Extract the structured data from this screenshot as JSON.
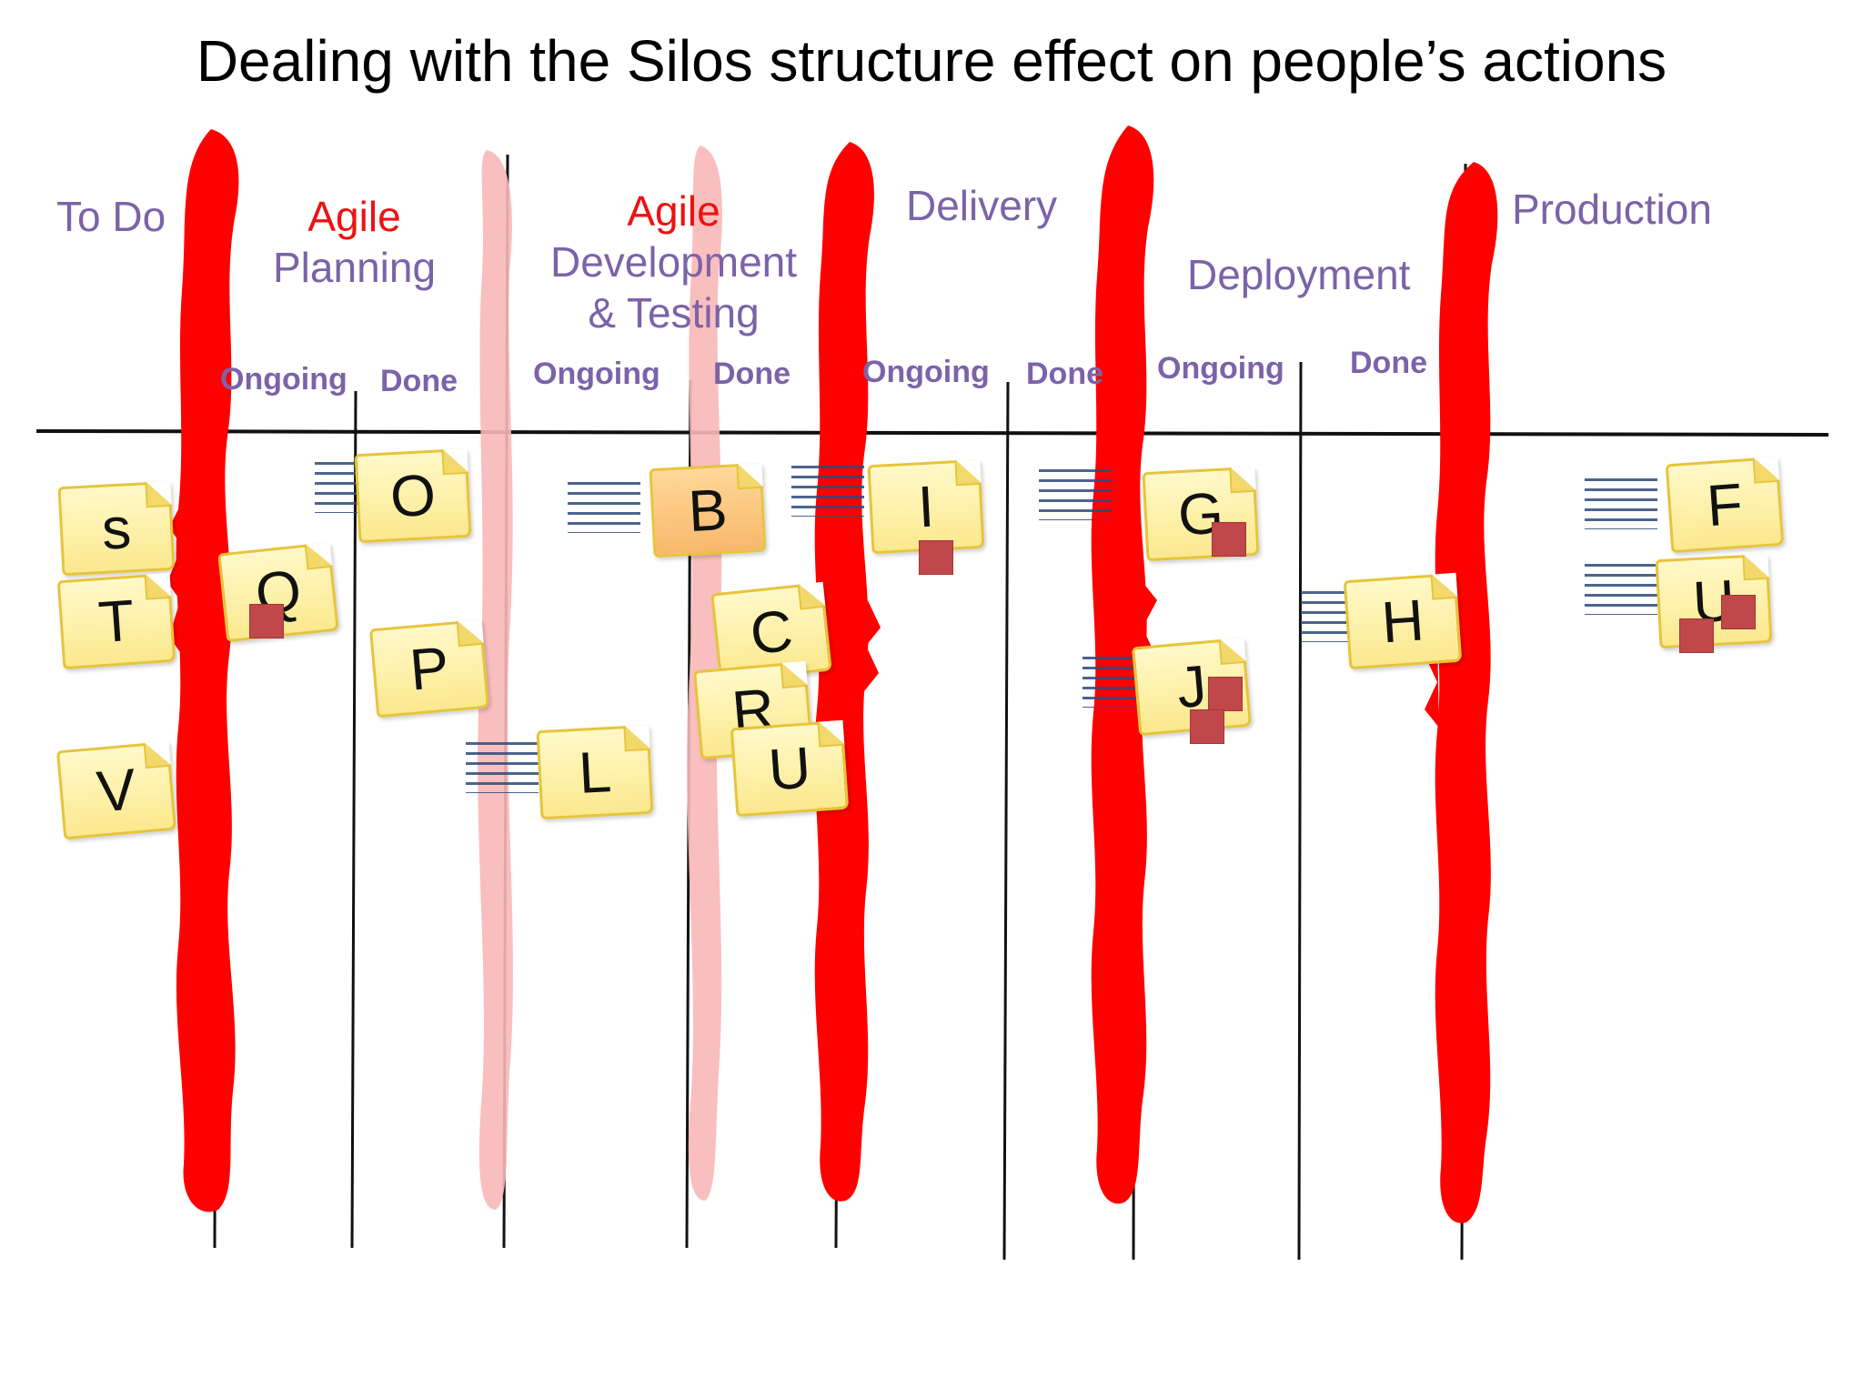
{
  "title": "Dealing with the Silos structure effect on people’s actions",
  "columns": {
    "todo": {
      "label": "To Do"
    },
    "planning": {
      "prefix": "Agile",
      "label": "Planning",
      "sub_ongoing": "Ongoing",
      "sub_done": "Done"
    },
    "development": {
      "prefix": "Agile",
      "label_line1": "Development",
      "label_line2": "& Testing",
      "sub_ongoing": "Ongoing",
      "sub_done": "Done"
    },
    "delivery": {
      "label": "Delivery",
      "sub_ongoing": "Ongoing",
      "sub_done": "Done"
    },
    "deployment": {
      "label": "Deployment",
      "sub_ongoing": "Ongoing",
      "sub_done": "Done"
    },
    "production": {
      "label": "Production"
    }
  },
  "cards": [
    {
      "id": "s",
      "label": "s",
      "column": "To Do",
      "blocked": false
    },
    {
      "id": "T",
      "label": "T",
      "column": "To Do",
      "blocked": false
    },
    {
      "id": "V",
      "label": "V",
      "column": "To Do",
      "blocked": false
    },
    {
      "id": "Q",
      "label": "Q",
      "column": "Planning Ongoing",
      "blocked": true
    },
    {
      "id": "O",
      "label": "O",
      "column": "Planning Done",
      "blocked": false
    },
    {
      "id": "P",
      "label": "P",
      "column": "Planning Done",
      "blocked": false
    },
    {
      "id": "L",
      "label": "L",
      "column": "Development Ongoing",
      "blocked": false
    },
    {
      "id": "B",
      "label": "B",
      "column": "Development Done",
      "blocked": false
    },
    {
      "id": "C",
      "label": "C",
      "column": "Development Done",
      "blocked": false
    },
    {
      "id": "R",
      "label": "R",
      "column": "Development Done",
      "blocked": false
    },
    {
      "id": "U1",
      "label": "U",
      "column": "Development Done",
      "blocked": false
    },
    {
      "id": "I",
      "label": "I",
      "column": "Delivery Ongoing",
      "blocked": true
    },
    {
      "id": "G",
      "label": "G",
      "column": "Deployment Ongoing",
      "blocked": true
    },
    {
      "id": "J",
      "label": "J",
      "column": "Deployment Ongoing",
      "blocked": true
    },
    {
      "id": "H",
      "label": "H",
      "column": "Deployment Done",
      "blocked": false
    },
    {
      "id": "F",
      "label": "F",
      "column": "Production",
      "blocked": false
    },
    {
      "id": "U2",
      "label": "U",
      "column": "Production",
      "blocked": true
    }
  ],
  "colors": {
    "silo_wall": "#ff0000",
    "silo_wall_faded": "#f8b8b8",
    "heading_purple": "#7b63a8",
    "heading_red": "#ee1111",
    "note_fill": "#fdf1a8",
    "blocker": "#c0474a"
  }
}
